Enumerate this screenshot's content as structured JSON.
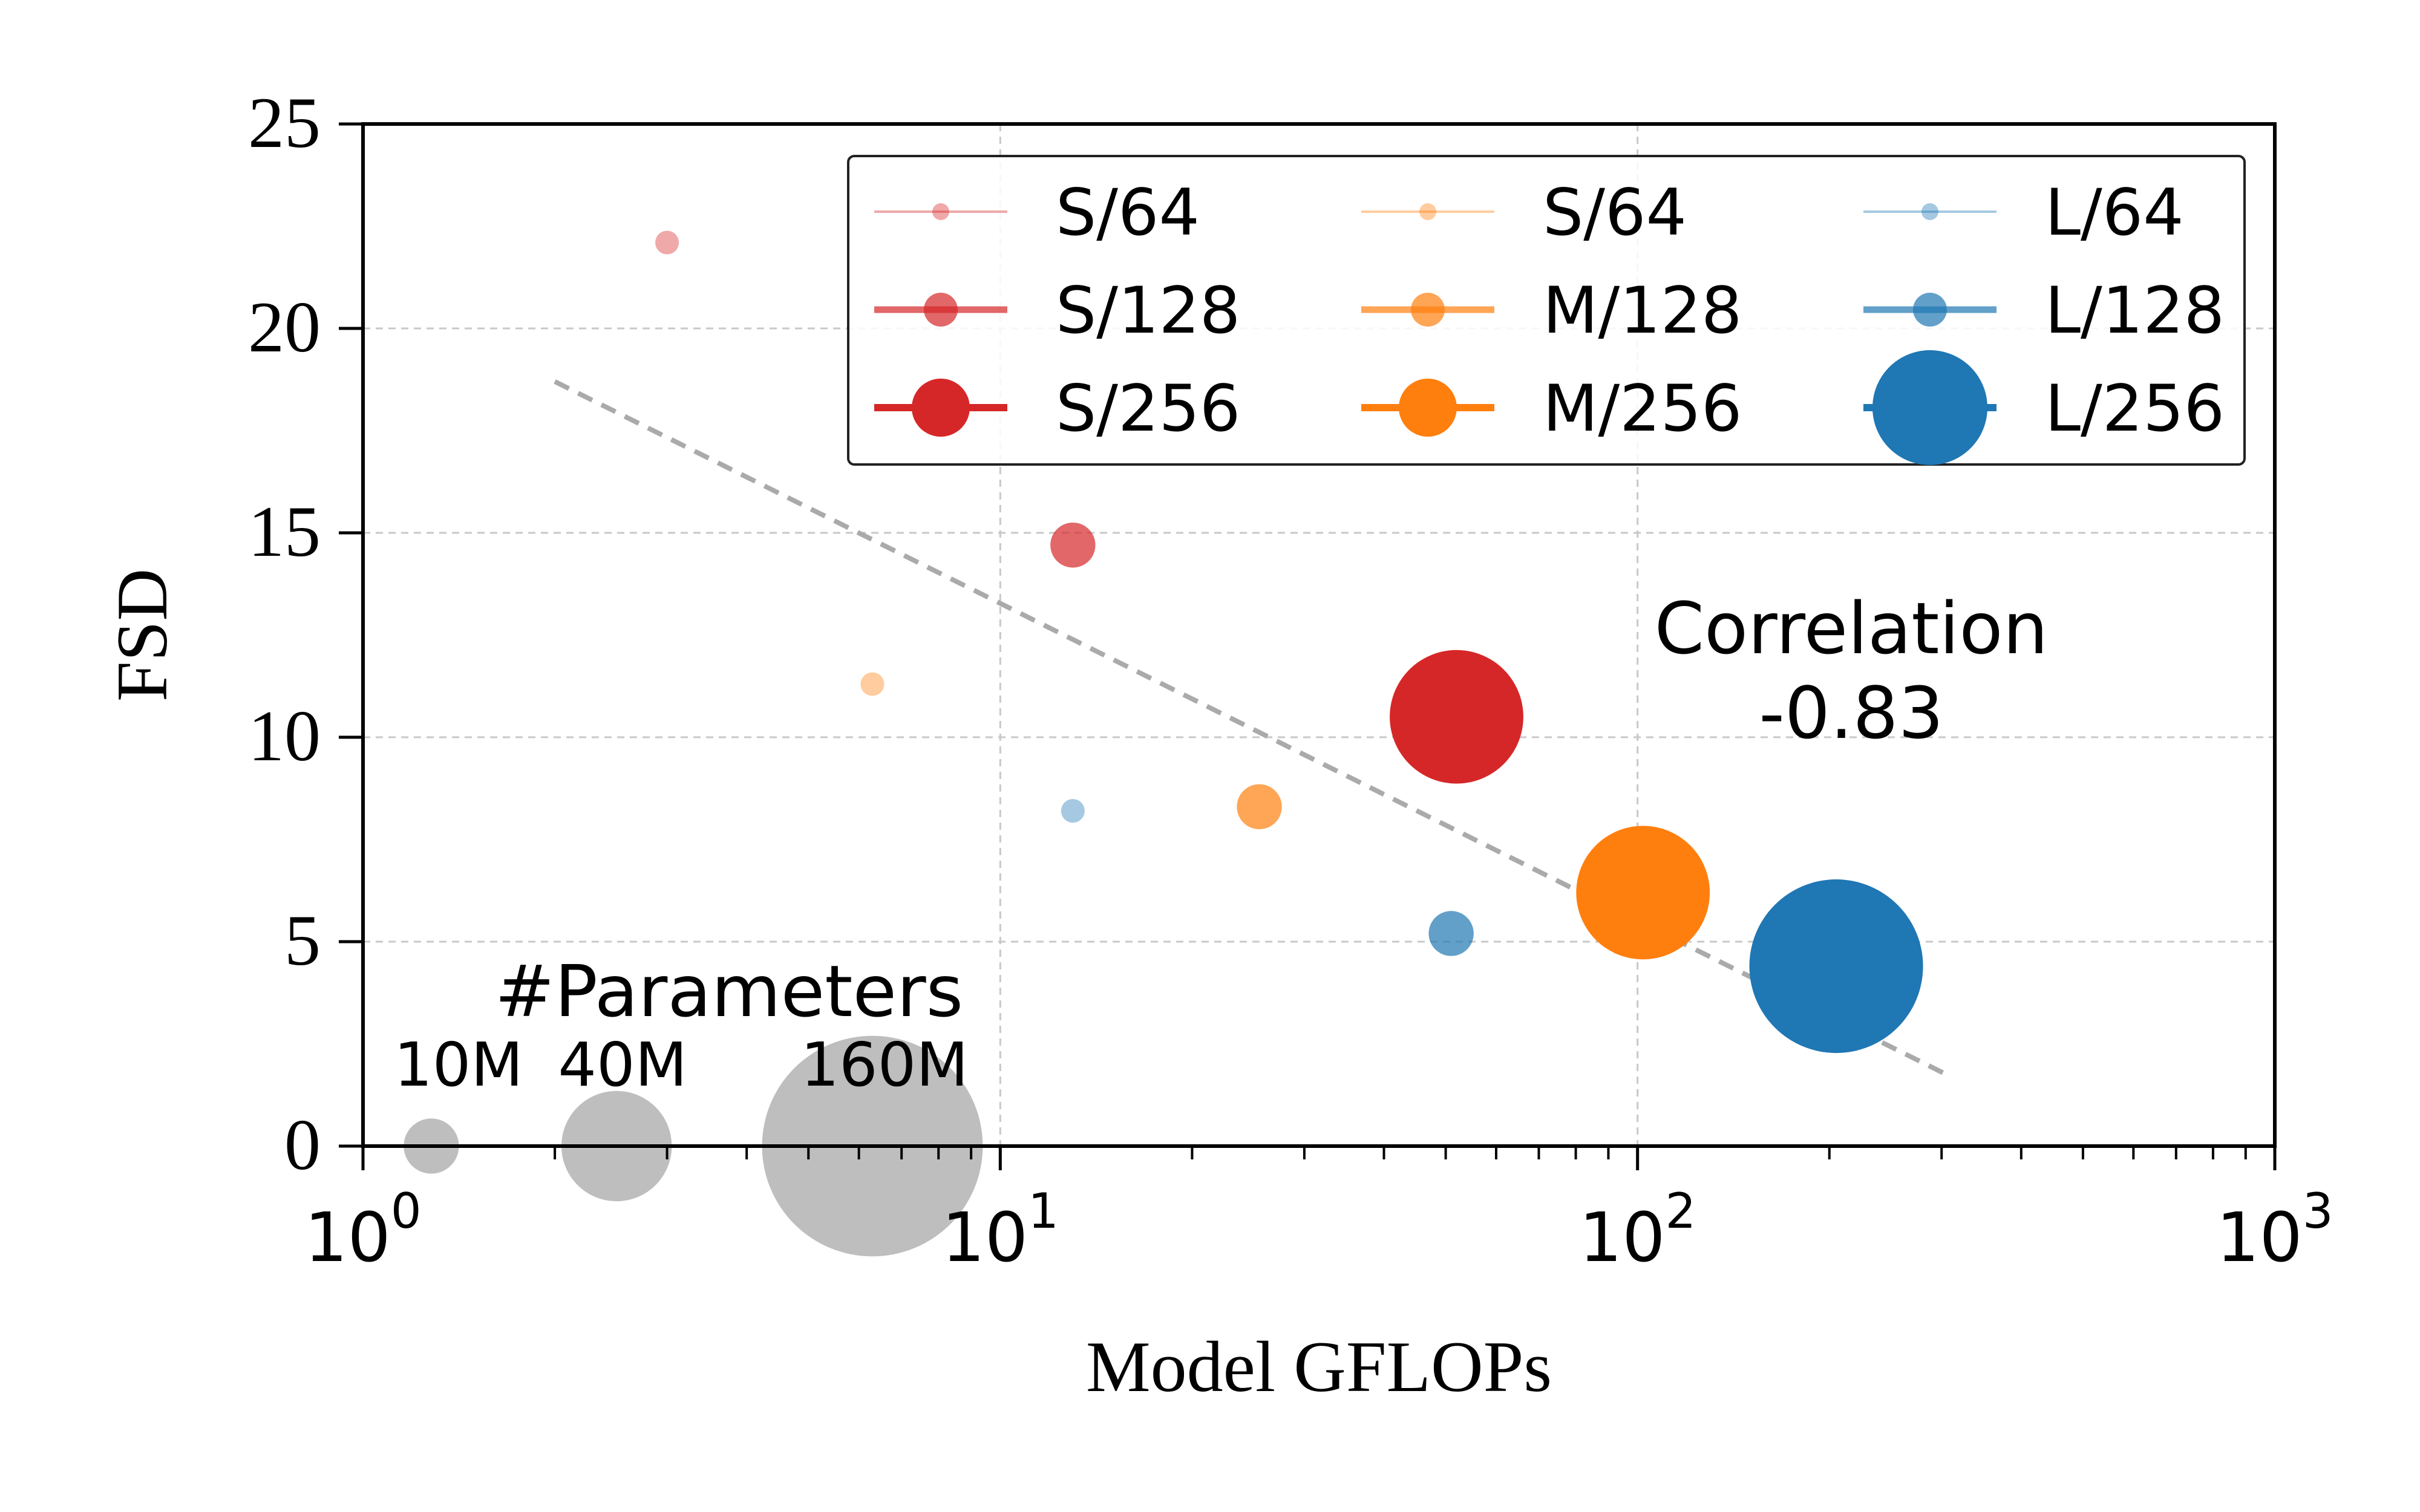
{
  "chart_data": {
    "type": "scatter",
    "xlabel": "Model GFLOPs",
    "ylabel": "FSD",
    "xscale": "log",
    "xlim": [
      1,
      1000
    ],
    "ylim": [
      0,
      25
    ],
    "grid": true,
    "xtick_labels": [
      {
        "value": 1,
        "base": "10",
        "exp": "0"
      },
      {
        "value": 10,
        "base": "10",
        "exp": "1"
      },
      {
        "value": 100,
        "base": "10",
        "exp": "2"
      },
      {
        "value": 1000,
        "base": "10",
        "exp": "3"
      }
    ],
    "yticks": [
      0,
      5,
      10,
      15,
      20,
      25
    ],
    "legend_position": "top-right",
    "legend_columns": 3,
    "series": [
      {
        "name": "S/64",
        "color": "#d62728",
        "alpha": 0.4,
        "params_m": 10,
        "x": [
          3.0
        ],
        "y": [
          22.1
        ]
      },
      {
        "name": "S/128",
        "color": "#d62728",
        "alpha": 0.7,
        "params_m": 40,
        "x": [
          13.0
        ],
        "y": [
          14.7
        ]
      },
      {
        "name": "S/256",
        "color": "#d62728",
        "alpha": 1.0,
        "params_m": 160,
        "x": [
          52.0
        ],
        "y": [
          10.5
        ]
      },
      {
        "name": "S/64",
        "color": "#ff7f0e",
        "alpha": 0.4,
        "params_m": 10,
        "x": [
          6.3
        ],
        "y": [
          11.3
        ]
      },
      {
        "name": "M/128",
        "color": "#ff7f0e",
        "alpha": 0.7,
        "params_m": 40,
        "x": [
          25.5
        ],
        "y": [
          8.3
        ]
      },
      {
        "name": "M/256",
        "color": "#ff7f0e",
        "alpha": 1.0,
        "params_m": 160,
        "x": [
          102.0
        ],
        "y": [
          6.2
        ]
      },
      {
        "name": "L/64",
        "color": "#1f77b4",
        "alpha": 0.4,
        "params_m": 10,
        "x": [
          13.0
        ],
        "y": [
          8.2
        ]
      },
      {
        "name": "L/128",
        "color": "#1f77b4",
        "alpha": 0.7,
        "params_m": 40,
        "x": [
          51.0
        ],
        "y": [
          5.2
        ]
      },
      {
        "name": "L/256",
        "color": "#1f77b4",
        "alpha": 1.0,
        "params_m": 160,
        "x": [
          205.0
        ],
        "y": [
          4.4
        ]
      }
    ],
    "trend_line": {
      "style": "dashed",
      "color": "#aaaaaa",
      "x": [
        2.0,
        310.0
      ],
      "y": [
        18.7,
        1.7
      ]
    },
    "annotations": {
      "correlation_title": "Correlation",
      "correlation_value": "-0.83"
    },
    "size_legend": {
      "title": "#Parameters",
      "color": "#bbbbbb",
      "items": [
        {
          "label": "10M",
          "params_m": 10,
          "x": 1.28,
          "y": 0
        },
        {
          "label": "40M",
          "params_m": 40,
          "x": 2.5,
          "y": 0
        },
        {
          "label": "160M",
          "params_m": 160,
          "x": 6.3,
          "y": 0
        }
      ]
    }
  }
}
